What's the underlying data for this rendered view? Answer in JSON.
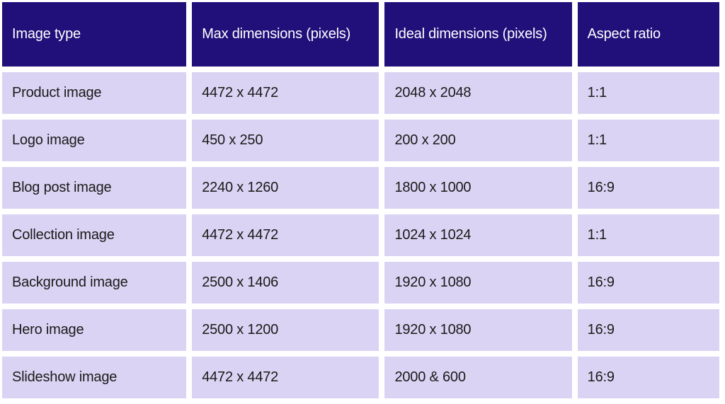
{
  "colors": {
    "header_bg": "#21107a",
    "row_bg": "#dbd3f3"
  },
  "headers": [
    "Image type",
    "Max dimensions (pixels)",
    "Ideal dimensions (pixels)",
    "Aspect ratio"
  ],
  "rows": [
    [
      "Product image",
      "4472 x 4472",
      "2048 x 2048",
      "1:1"
    ],
    [
      "Logo image",
      "450 x 250",
      "200 x 200",
      "1:1"
    ],
    [
      "Blog post image",
      "2240 x 1260",
      "1800 x 1000",
      "16:9"
    ],
    [
      "Collection image",
      "4472 x 4472",
      "1024 x 1024",
      "1:1"
    ],
    [
      "Background image",
      "2500 x 1406",
      "1920 x 1080",
      "16:9"
    ],
    [
      "Hero image",
      "2500 x 1200",
      "1920 x 1080",
      "16:9"
    ],
    [
      "Slideshow image",
      "4472 x 4472",
      "2000 & 600",
      "16:9"
    ]
  ]
}
